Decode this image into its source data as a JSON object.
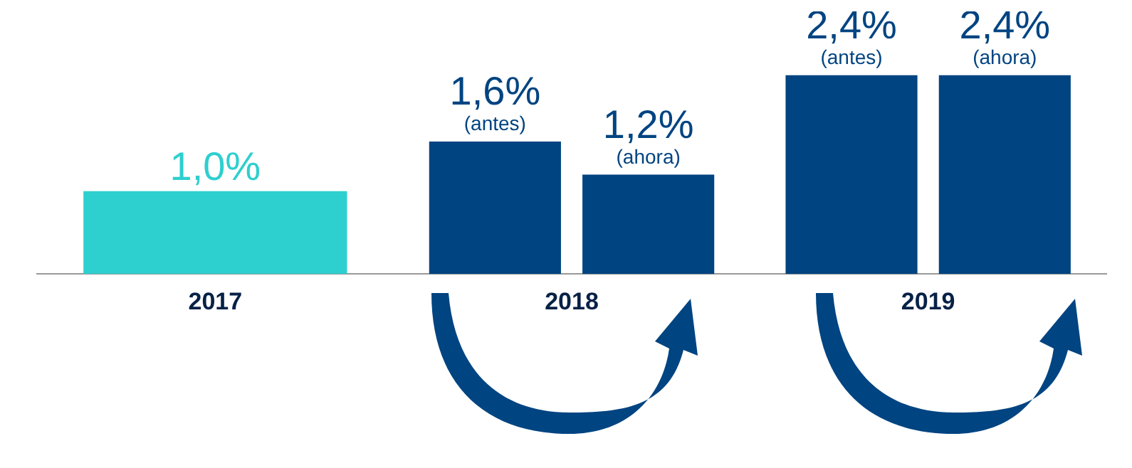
{
  "chart_data": {
    "type": "bar",
    "categories": [
      "2017",
      "2018",
      "2019"
    ],
    "series": [
      {
        "color": "#2ecfcf",
        "values": [
          1.0,
          null,
          null
        ],
        "value_labels": [
          "1,0%",
          null,
          null
        ]
      },
      {
        "name": "(antes)",
        "color": "#004481",
        "values": [
          null,
          1.6,
          2.4
        ],
        "value_labels": [
          null,
          "1,6%",
          "2,4%"
        ]
      },
      {
        "name": "(ahora)",
        "color": "#004481",
        "values": [
          null,
          1.2,
          2.4
        ],
        "value_labels": [
          null,
          "1,2%",
          "2,4%"
        ]
      }
    ],
    "relative": false,
    "grid": false,
    "legend": false
  }
}
